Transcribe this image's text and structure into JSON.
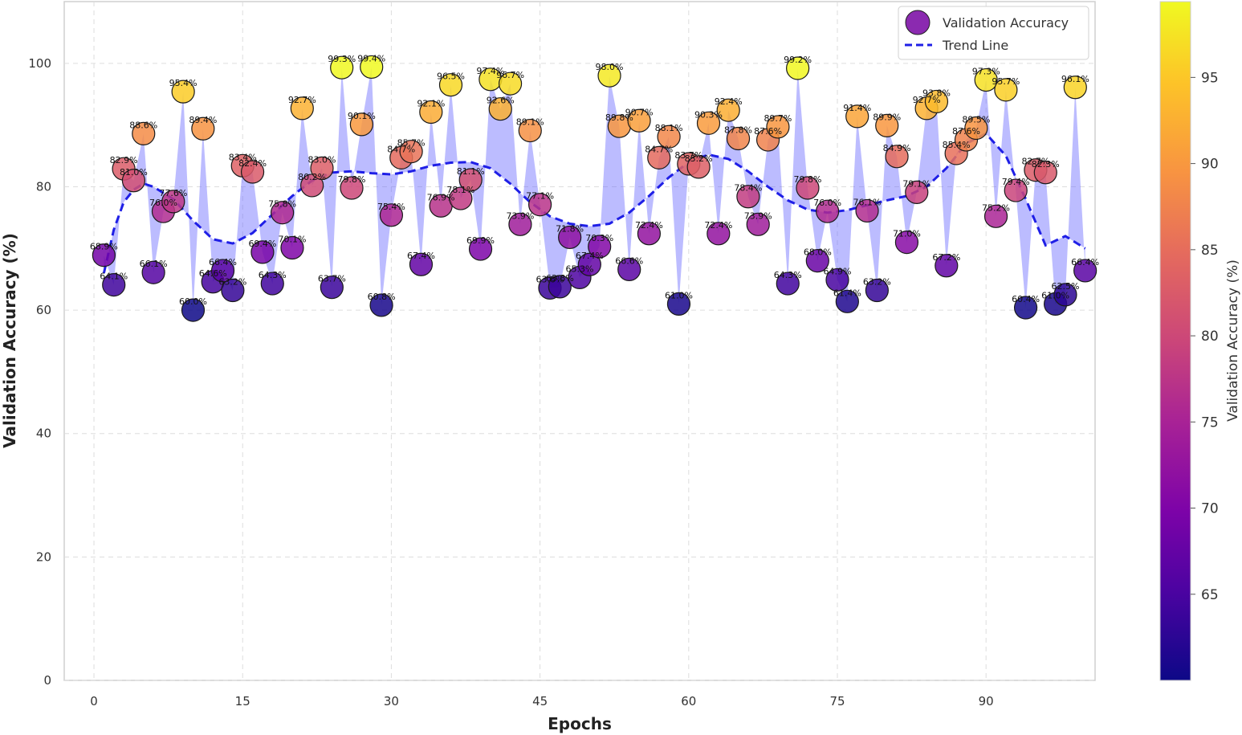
{
  "chart_data": {
    "type": "scatter",
    "title": "",
    "xlabel": "Epochs",
    "ylabel": "Validation Accuracy (%)",
    "xlim": [
      -3,
      101
    ],
    "ylim": [
      0,
      110
    ],
    "xticks": [
      "0",
      "15",
      "30",
      "45",
      "60",
      "75",
      "90"
    ],
    "yticks": [
      "0",
      "20",
      "40",
      "60",
      "80",
      "100"
    ],
    "grid": true,
    "legend_position": "top-right",
    "series": [
      {
        "name": "Validation Accuracy",
        "x": [
          1,
          2,
          3,
          4,
          5,
          6,
          7,
          8,
          9,
          10,
          11,
          12,
          13,
          14,
          15,
          16,
          17,
          18,
          19,
          20,
          21,
          22,
          23,
          24,
          25,
          26,
          27,
          28,
          29,
          30,
          31,
          32,
          33,
          34,
          35,
          36,
          37,
          38,
          39,
          40,
          41,
          42,
          43,
          44,
          45,
          46,
          47,
          48,
          49,
          50,
          51,
          52,
          53,
          54,
          55,
          56,
          57,
          58,
          59,
          60,
          61,
          62,
          63,
          64,
          65,
          66,
          67,
          68,
          69,
          70,
          71,
          72,
          73,
          74,
          75,
          76,
          77,
          78,
          79,
          80,
          81,
          82,
          83,
          84,
          85,
          86,
          87,
          88,
          89,
          90,
          91,
          92,
          93,
          94,
          95,
          96,
          97,
          98,
          99,
          100
        ],
        "values": [
          68.9,
          64.1,
          82.9,
          81.0,
          88.6,
          66.1,
          76.0,
          77.6,
          95.4,
          60.0,
          89.4,
          64.6,
          66.4,
          63.2,
          83.4,
          82.4,
          69.4,
          64.3,
          75.8,
          70.1,
          92.7,
          80.2,
          83.0,
          63.7,
          99.3,
          79.8,
          90.1,
          99.4,
          60.8,
          75.4,
          84.7,
          85.7,
          67.4,
          92.1,
          76.9,
          96.5,
          78.1,
          81.1,
          69.9,
          97.4,
          92.6,
          96.7,
          73.9,
          89.1,
          77.1,
          63.6,
          63.8,
          71.8,
          65.3,
          67.4,
          70.3,
          98.0,
          89.8,
          66.6,
          90.7,
          72.4,
          84.7,
          88.1,
          61.0,
          83.7,
          83.2,
          90.3,
          72.4,
          92.4,
          87.8,
          78.4,
          73.9,
          87.6,
          89.7,
          64.3,
          99.2,
          79.8,
          68.0,
          76.0,
          64.9,
          61.4,
          91.4,
          76.1,
          63.2,
          89.9,
          84.9,
          71.0,
          79.1,
          92.7,
          93.8,
          67.2,
          85.4,
          87.6,
          89.5,
          97.3,
          75.2,
          95.7,
          79.4,
          60.4,
          82.7,
          82.3,
          61.0,
          62.5,
          96.1,
          66.4
        ],
        "labels": [
          "68.9%",
          "64.1%",
          "82.9%",
          "81.0%",
          "88.6%",
          "66.1%",
          "76.0%",
          "77.6%",
          "95.4%",
          "60.0%",
          "89.4%",
          "64.6%",
          "66.4%",
          "63.2%",
          "83.4%",
          "82.4%",
          "69.4%",
          "64.3%",
          "75.8%",
          "70.1%",
          "92.7%",
          "80.2%",
          "83.0%",
          "63.7%",
          "99.3%",
          "79.8%",
          "90.1%",
          "99.4%",
          "60.8%",
          "75.4%",
          "84.7%",
          "85.7%",
          "67.4%",
          "92.1%",
          "76.9%",
          "96.5%",
          "78.1%",
          "81.1%",
          "69.9%",
          "97.4%",
          "92.6%",
          "96.7%",
          "73.9%",
          "89.1%",
          "77.1%",
          "63.6%",
          "63.8%",
          "71.8%",
          "65.3%",
          "67.4%",
          "70.3%",
          "98.0%",
          "89.8%",
          "66.6%",
          "90.7%",
          "72.4%",
          "84.7%",
          "88.1%",
          "61.0%",
          "83.7%",
          "83.2%",
          "90.3%",
          "72.4%",
          "92.4%",
          "87.8%",
          "78.4%",
          "73.9%",
          "87.6%",
          "89.7%",
          "64.3%",
          "99.2%",
          "79.8%",
          "68.0%",
          "76.0%",
          "64.9%",
          "61.4%",
          "91.4%",
          "76.1%",
          "63.2%",
          "89.9%",
          "84.9%",
          "71.0%",
          "79.1%",
          "92.7%",
          "93.8%",
          "67.2%",
          "85.4%",
          "87.6%",
          "89.5%",
          "97.3%",
          "75.2%",
          "95.7%",
          "79.4%",
          "60.4%",
          "82.7%",
          "82.3%",
          "61.0%",
          "62.5%",
          "96.1%",
          "66.4%"
        ]
      },
      {
        "name": "Trend Line",
        "style": "dashed",
        "color": "#1f1fe6",
        "x": [
          1,
          2,
          3,
          4,
          5,
          6,
          8,
          10,
          12,
          14,
          16,
          18,
          20,
          22,
          24,
          26,
          28,
          30,
          32,
          34,
          36,
          38,
          40,
          42,
          44,
          46,
          48,
          50,
          52,
          54,
          56,
          58,
          60,
          62,
          64,
          66,
          68,
          70,
          72,
          74,
          76,
          78,
          80,
          82,
          84,
          86,
          88,
          90,
          92,
          94,
          96,
          98,
          100
        ],
        "values": [
          66.0,
          73.0,
          77.5,
          79.5,
          80.5,
          80.0,
          78.0,
          74.5,
          71.5,
          70.8,
          72.5,
          75.5,
          78.5,
          81.0,
          82.3,
          82.5,
          82.2,
          82.0,
          82.5,
          83.4,
          83.9,
          84.0,
          83.0,
          80.5,
          77.5,
          75.2,
          74.0,
          73.6,
          74.0,
          75.8,
          78.5,
          81.5,
          84.0,
          85.2,
          84.5,
          82.5,
          80.0,
          77.8,
          76.3,
          75.8,
          76.2,
          77.0,
          77.8,
          78.5,
          80.0,
          83.0,
          87.0,
          88.6,
          85.0,
          78.0,
          70.5,
          72.0,
          70.0
        ]
      }
    ],
    "fill_between": {
      "series_a": "Validation Accuracy",
      "series_b": "Trend Line",
      "color": "#6b6bff"
    },
    "colorbar": {
      "label": "Validation Accuracy (%)",
      "range": [
        60.0,
        99.4
      ],
      "ticks": [
        "65",
        "70",
        "75",
        "80",
        "85",
        "90",
        "95"
      ],
      "colormap": "plasma"
    }
  }
}
